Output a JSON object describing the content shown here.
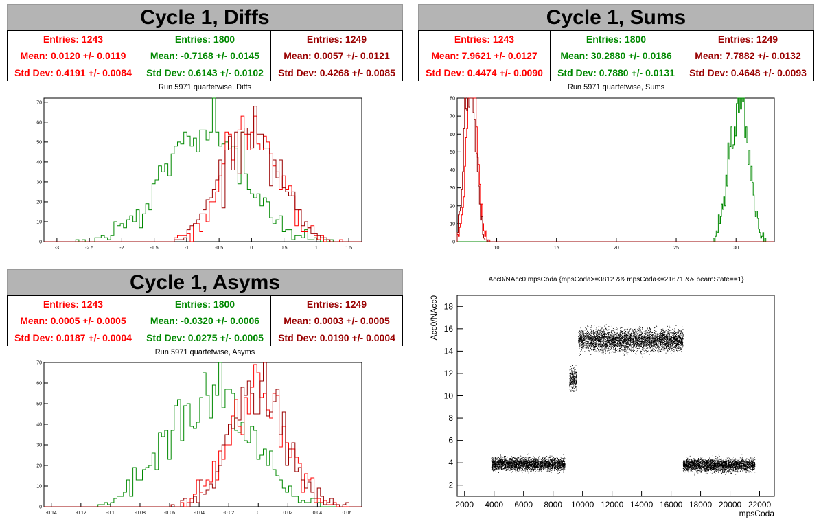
{
  "colors": {
    "red": "#ff0000",
    "green": "#008800",
    "darkred": "#990000",
    "header_bg": "#b4b4b4"
  },
  "panels": {
    "diffs": {
      "header": "Cycle 1, Diffs",
      "stats": [
        {
          "entries": "Entries: 1243",
          "mean": "Mean: 0.0120 +/- 0.0119",
          "std": "Std Dev: 0.4191 +/- 0.0084"
        },
        {
          "entries": "Entries: 1800",
          "mean": "Mean: -0.7168 +/- 0.0145",
          "std": "Std Dev: 0.6143 +/- 0.0102"
        },
        {
          "entries": "Entries: 1249",
          "mean": "Mean: 0.0057 +/- 0.0121",
          "std": "Std Dev: 0.4268 +/- 0.0085"
        }
      ],
      "title": "Run 5971 quartetwise, Diffs"
    },
    "sums": {
      "header": "Cycle 1, Sums",
      "stats": [
        {
          "entries": "Entries: 1243",
          "mean": "Mean: 7.9621 +/- 0.0127",
          "std": "Std Dev: 0.4474 +/- 0.0090"
        },
        {
          "entries": "Entries: 1800",
          "mean": "Mean: 30.2880 +/- 0.0186",
          "std": "Std Dev: 0.7880 +/- 0.0131"
        },
        {
          "entries": "Entries: 1249",
          "mean": "Mean: 7.7882 +/- 0.0132",
          "std": "Std Dev: 0.4648 +/- 0.0093"
        }
      ],
      "title": "Run 5971 quartetwise, Sums"
    },
    "asyms": {
      "header": "Cycle 1, Asyms",
      "stats": [
        {
          "entries": "Entries: 1243",
          "mean": "Mean: 0.0005 +/- 0.0005",
          "std": "Std Dev: 0.0187 +/- 0.0004"
        },
        {
          "entries": "Entries: 1800",
          "mean": "Mean: -0.0320 +/- 0.0006",
          "std": "Std Dev: 0.0275 +/- 0.0005"
        },
        {
          "entries": "Entries: 1249",
          "mean": "Mean: 0.0003 +/- 0.0005",
          "std": "Std Dev: 0.0190 +/- 0.0004"
        }
      ],
      "title": "Run 5971 quartetwise, Asyms"
    },
    "scatter": {
      "title": "Acc0/NAcc0:mpsCoda {mpsCoda>=3812 && mpsCoda<=21671 && beamState==1}",
      "xlabel": "mpsCoda",
      "ylabel": "Acc0/NAcc0"
    }
  },
  "chart_data": [
    {
      "type": "histogram",
      "title": "Run 5971 quartetwise, Diffs",
      "xlim": [
        -3.2,
        1.7
      ],
      "ylim": [
        0,
        72
      ],
      "xticks": [
        -3,
        -2.5,
        -2,
        -1.5,
        -1,
        -0.5,
        0,
        0.5,
        1,
        1.5
      ],
      "xtick_labels": [
        "-3",
        "-2.5",
        "-2",
        "-1.5",
        "-1",
        "-0.5",
        "0",
        "0.5",
        "1",
        "1.5"
      ],
      "yticks": [
        0,
        10,
        20,
        30,
        40,
        50,
        60,
        70
      ],
      "series": [
        {
          "color": "#008800",
          "entries": 1800,
          "mean": -0.7168,
          "std": 0.6143
        },
        {
          "color": "#ff0000",
          "entries": 1243,
          "mean": 0.012,
          "std": 0.4191
        },
        {
          "color": "#990000",
          "entries": 1249,
          "mean": 0.0057,
          "std": 0.4268
        }
      ]
    },
    {
      "type": "histogram",
      "title": "Run 5971 quartetwise, Sums",
      "xlim": [
        6.7,
        33.2
      ],
      "ylim": [
        0,
        80
      ],
      "xticks": [
        10,
        15,
        20,
        25,
        30
      ],
      "xtick_labels": [
        "10",
        "15",
        "20",
        "25",
        "30"
      ],
      "yticks": [
        0,
        10,
        20,
        30,
        40,
        50,
        60,
        70,
        80
      ],
      "series": [
        {
          "color": "#008800",
          "entries": 1800,
          "mean": 30.288,
          "std": 0.788
        },
        {
          "color": "#ff0000",
          "entries": 1243,
          "mean": 7.9621,
          "std": 0.4474
        },
        {
          "color": "#990000",
          "entries": 1249,
          "mean": 7.7882,
          "std": 0.4648
        }
      ]
    },
    {
      "type": "histogram",
      "title": "Run 5971 quartetwise, Asyms",
      "xlim": [
        -0.145,
        0.07
      ],
      "ylim": [
        0,
        70
      ],
      "xticks": [
        -0.14,
        -0.12,
        -0.1,
        -0.08,
        -0.06,
        -0.04,
        -0.02,
        0,
        0.02,
        0.04,
        0.06
      ],
      "xtick_labels": [
        "-0.14",
        "-0.12",
        "-0.1",
        "-0.08",
        "-0.06",
        "-0.04",
        "-0.02",
        "0",
        "0.02",
        "0.04",
        "0.06"
      ],
      "yticks": [
        0,
        10,
        20,
        30,
        40,
        50,
        60,
        70
      ],
      "series": [
        {
          "color": "#008800",
          "entries": 1800,
          "mean": -0.032,
          "std": 0.0275
        },
        {
          "color": "#ff0000",
          "entries": 1243,
          "mean": 0.0005,
          "std": 0.0187
        },
        {
          "color": "#990000",
          "entries": 1249,
          "mean": 0.0003,
          "std": 0.019
        }
      ]
    },
    {
      "type": "scatter",
      "title": "Acc0/NAcc0:mpsCoda {mpsCoda>=3812 && mpsCoda<=21671 && beamState==1}",
      "xlabel": "mpsCoda",
      "ylabel": "Acc0/NAcc0",
      "xlim": [
        1500,
        23000
      ],
      "ylim": [
        1,
        19
      ],
      "xticks": [
        2000,
        4000,
        6000,
        8000,
        10000,
        12000,
        14000,
        16000,
        18000,
        20000,
        22000
      ],
      "xtick_labels": [
        "2000",
        "4000",
        "6000",
        "8000",
        "10000",
        "12000",
        "14000",
        "16000",
        "18000",
        "20000",
        "22000"
      ],
      "yticks": [
        2,
        4,
        6,
        8,
        10,
        12,
        14,
        16,
        18
      ],
      "ytick_labels": [
        "2",
        "4",
        "6",
        "8",
        "10",
        "12",
        "14",
        "16",
        "18"
      ],
      "clusters": [
        {
          "x": [
            3812,
            8800
          ],
          "y_center": 3.9,
          "y_spread": 0.35
        },
        {
          "x": [
            9100,
            9600
          ],
          "y_center": 11.5,
          "y_spread": 0.6
        },
        {
          "x": [
            9700,
            16800
          ],
          "y_center": 15.0,
          "y_spread": 0.6
        },
        {
          "x": [
            16800,
            21671
          ],
          "y_center": 3.8,
          "y_spread": 0.35
        }
      ]
    }
  ]
}
